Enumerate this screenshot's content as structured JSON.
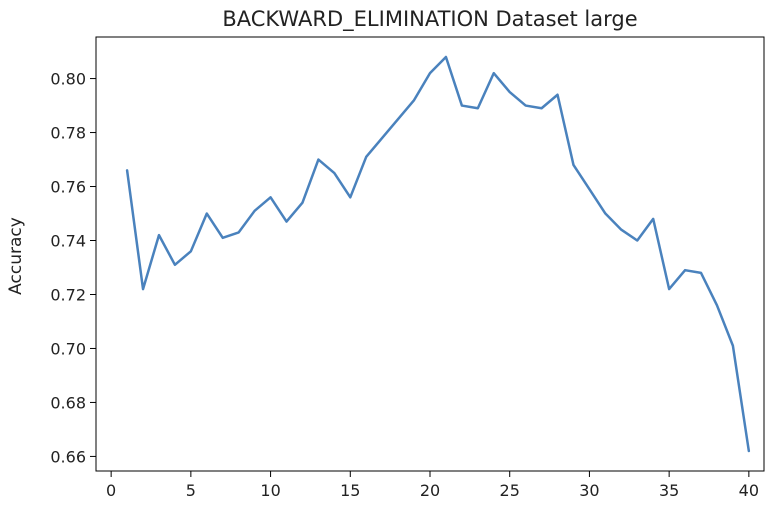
{
  "chart_data": {
    "type": "line",
    "title": "BACKWARD_ELIMINATION Dataset large",
    "xlabel": "",
    "ylabel": "Accuracy",
    "xlim": [
      -0.95,
      40.95
    ],
    "ylim": [
      0.6546,
      0.8154
    ],
    "xticks": [
      0,
      5,
      10,
      15,
      20,
      25,
      30,
      35,
      40
    ],
    "yticks": [
      0.66,
      0.68,
      0.7,
      0.72,
      0.74,
      0.76,
      0.78,
      0.8
    ],
    "ytick_labels": [
      "0.66",
      "0.68",
      "0.70",
      "0.72",
      "0.74",
      "0.76",
      "0.78",
      "0.80"
    ],
    "grid": false,
    "line_color": "#4a82bd",
    "series": [
      {
        "x": [
          1,
          2,
          3,
          4,
          5,
          6,
          7,
          8,
          9,
          10,
          11,
          12,
          13,
          14,
          15,
          16,
          17,
          18,
          19,
          20,
          21,
          22,
          23,
          24,
          25,
          26,
          27,
          28,
          29,
          30,
          31,
          32,
          33,
          34,
          35,
          36,
          37,
          38,
          39,
          40
        ],
        "values": [
          0.766,
          0.722,
          0.742,
          0.731,
          0.736,
          0.75,
          0.741,
          0.743,
          0.751,
          0.756,
          0.747,
          0.754,
          0.77,
          0.765,
          0.756,
          0.771,
          0.778,
          0.785,
          0.792,
          0.802,
          0.808,
          0.79,
          0.789,
          0.802,
          0.795,
          0.79,
          0.789,
          0.794,
          0.768,
          0.759,
          0.75,
          0.744,
          0.74,
          0.748,
          0.722,
          0.729,
          0.728,
          0.716,
          0.701,
          0.662
        ]
      }
    ]
  }
}
